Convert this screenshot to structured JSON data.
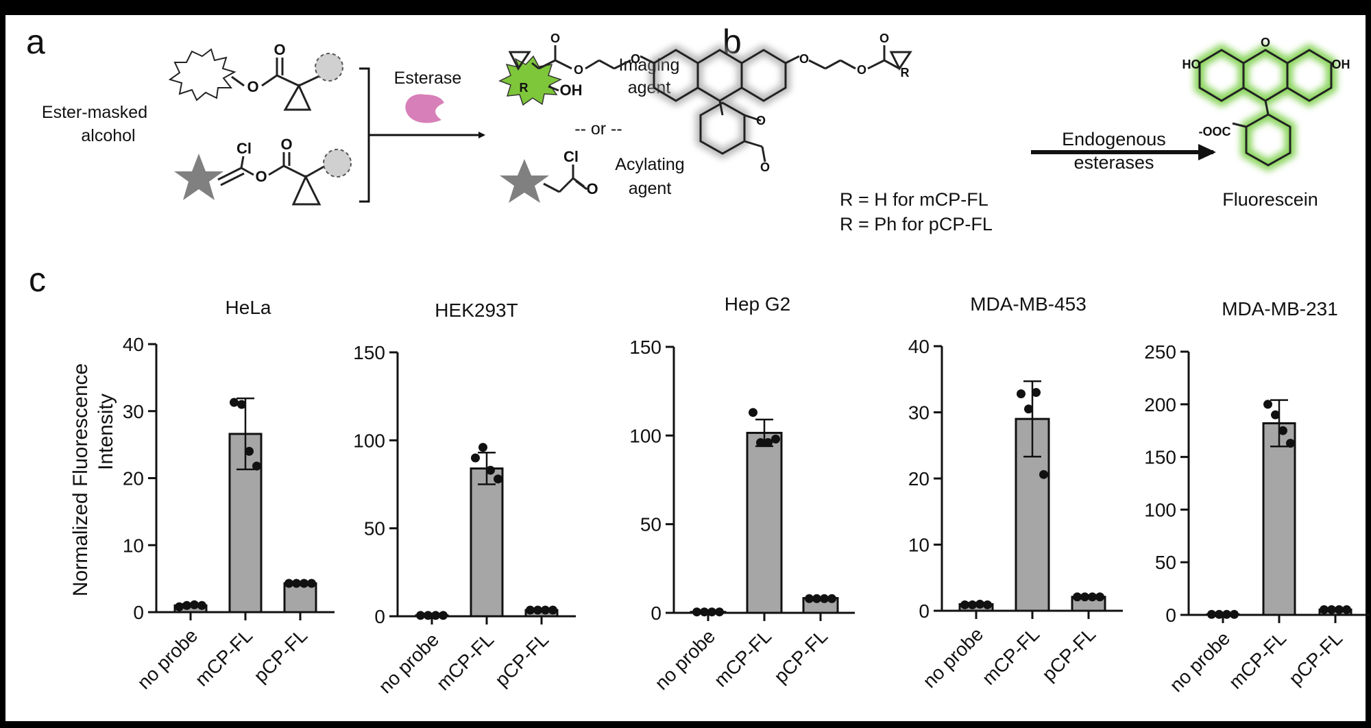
{
  "panel_letters": {
    "a": "a",
    "b": "b",
    "c": "c"
  },
  "panel_a": {
    "ester_masked": "Ester-masked",
    "alcohol": "alcohol",
    "esterase": "Esterase",
    "imaging_agent_l1": "Imaging",
    "imaging_agent_l2": "agent",
    "or": "-- or --",
    "acylating_agent_l1": "Acylating",
    "acylating_agent_l2": "agent",
    "atom_o": "O",
    "atom_oh": "OH",
    "atom_cl": "Cl",
    "colors": {
      "imaging": "#7ec63a",
      "enzyme": "#d77fb8",
      "star": "#808080",
      "circle": "#d0d0d0"
    }
  },
  "panel_b": {
    "r_line1": "R = H for mCP-FL",
    "r_line2": "R = Ph for pCP-FL",
    "arrow_l1": "Endogenous",
    "arrow_l2": "esterases",
    "product": "Fluorescein",
    "atom_r": "R",
    "atom_o": "O",
    "atom_ho": "HO",
    "atom_oh": "OH",
    "atom_ooc": "-OOC",
    "colors": {
      "glow": "#7ccf4a"
    }
  },
  "panel_c": {
    "ylabel_l1": "Normalized Fluorescence",
    "ylabel_l2": "Intensity"
  },
  "chart_data": [
    {
      "type": "bar",
      "title": "HeLa",
      "ylim": [
        0,
        40
      ],
      "yticks": [
        0,
        10,
        20,
        30,
        40
      ],
      "categories": [
        "no probe",
        "mCP-FL",
        "pCP-FL"
      ],
      "values": [
        1.0,
        26.6,
        4.3
      ],
      "errors": [
        0.2,
        5.3,
        0.1
      ],
      "points": [
        [
          0.8,
          1.0,
          1.1,
          1.0
        ],
        [
          31.3,
          31.0,
          24.0,
          21.8
        ],
        [
          4.3,
          4.3,
          4.3,
          4.3
        ]
      ]
    },
    {
      "type": "bar",
      "title": "HEK293T",
      "ylim": [
        0,
        150
      ],
      "yticks": [
        0,
        50,
        100,
        150
      ],
      "categories": [
        "no probe",
        "mCP-FL",
        "pCP-FL"
      ],
      "values": [
        0.5,
        84.0,
        3.5
      ],
      "errors": [
        0.2,
        9.0,
        0.3
      ],
      "points": [
        [
          0.5,
          0.5,
          0.5,
          0.5
        ],
        [
          90.0,
          96.0,
          83.0,
          78.0
        ],
        [
          3.5,
          3.5,
          3.5,
          3.5
        ]
      ]
    },
    {
      "type": "bar",
      "title": "Hep G2",
      "ylim": [
        0,
        150
      ],
      "yticks": [
        0,
        50,
        100,
        150
      ],
      "categories": [
        "no probe",
        "mCP-FL",
        "pCP-FL"
      ],
      "values": [
        0.5,
        101.5,
        8.3
      ],
      "errors": [
        0.2,
        7.5,
        0.4
      ],
      "points": [
        [
          0.5,
          0.5,
          0.5,
          0.5
        ],
        [
          113.0,
          96.0,
          96.0,
          98.0
        ],
        [
          8.0,
          8.0,
          8.0,
          8.0
        ]
      ]
    },
    {
      "type": "bar",
      "title": "MDA-MB-453",
      "ylim": [
        0,
        40
      ],
      "yticks": [
        0,
        10,
        20,
        30,
        40
      ],
      "categories": [
        "no probe",
        "mCP-FL",
        "pCP-FL"
      ],
      "values": [
        1.0,
        29.0,
        2.1
      ],
      "errors": [
        0.2,
        5.7,
        0.1
      ],
      "points": [
        [
          0.9,
          0.9,
          1.0,
          0.9
        ],
        [
          32.8,
          30.5,
          33.0,
          20.6
        ],
        [
          2.1,
          2.1,
          2.1,
          2.1
        ]
      ]
    },
    {
      "type": "bar",
      "title": "MDA-MB-231",
      "ylim": [
        0,
        250
      ],
      "yticks": [
        0,
        50,
        100,
        150,
        200,
        250
      ],
      "categories": [
        "no probe",
        "mCP-FL",
        "pCP-FL"
      ],
      "values": [
        0.5,
        182.0,
        5.0
      ],
      "errors": [
        0.5,
        22.0,
        0.5
      ],
      "points": [
        [
          0.5,
          0.5,
          0.5,
          0.5
        ],
        [
          200.0,
          190.0,
          175.0,
          163.0
        ],
        [
          5.0,
          5.0,
          5.0,
          5.0
        ]
      ]
    }
  ]
}
